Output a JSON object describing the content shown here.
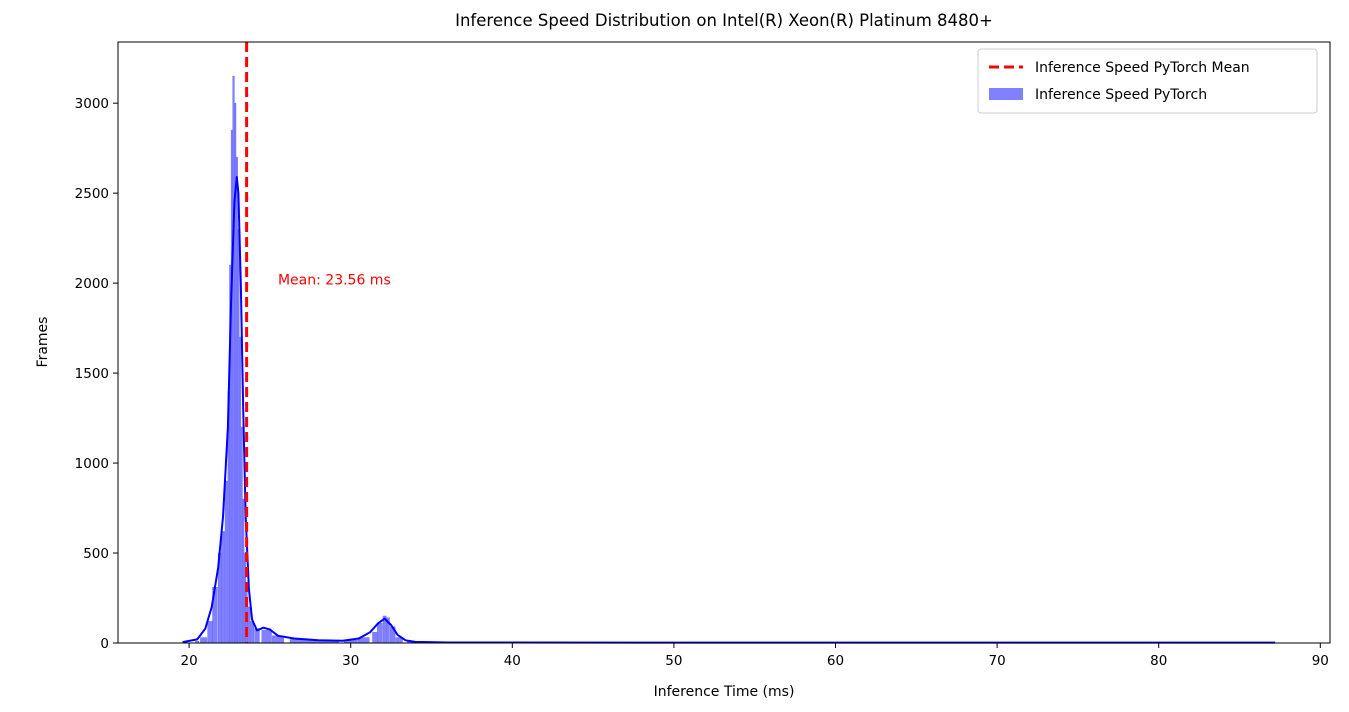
{
  "chart_data": {
    "type": "histogram",
    "title": "Inference Speed Distribution on Intel(R) Xeon(R) Platinum 8480+",
    "xlabel": "Inference Time (ms)",
    "ylabel": "Frames",
    "xlim": [
      15.6,
      90.6
    ],
    "ylim": [
      0,
      3340
    ],
    "xticks": [
      20,
      30,
      40,
      50,
      60,
      70,
      80,
      90
    ],
    "yticks": [
      0,
      500,
      1000,
      1500,
      2000,
      2500,
      3000
    ],
    "grid": false,
    "legend_position": "top-right",
    "colors": {
      "hist": "#6b6bff",
      "kde": "#0000ff",
      "mean": "#ff0000"
    },
    "series": [
      {
        "name": "Inference Speed PyTorch Mean",
        "kind": "mean-line",
        "color": "#ff0000"
      },
      {
        "name": "Inference Speed PyTorch",
        "kind": "histogram+kde",
        "color": "#6b6bff"
      }
    ],
    "mean": {
      "value": 23.56,
      "label": "Mean: 23.56 ms",
      "label_x": 25.5,
      "label_y": 2020
    },
    "histogram": {
      "x": [
        20.5,
        20.9,
        21.3,
        21.6,
        21.9,
        22.1,
        22.3,
        22.45,
        22.55,
        22.65,
        22.75,
        22.85,
        22.95,
        23.05,
        23.15,
        23.25,
        23.35,
        23.45,
        23.55,
        23.7,
        23.9,
        24.2,
        24.8,
        25.5,
        27,
        28.5,
        30,
        30.8,
        31.5,
        31.8,
        32.1,
        32.3,
        32.6,
        33,
        34,
        40,
        60,
        87
      ],
      "values": [
        10,
        30,
        120,
        310,
        500,
        620,
        900,
        1400,
        2100,
        2850,
        3150,
        3000,
        2700,
        2300,
        1700,
        1200,
        800,
        500,
        320,
        200,
        120,
        80,
        70,
        40,
        20,
        15,
        15,
        30,
        60,
        110,
        150,
        140,
        90,
        30,
        8,
        5,
        3,
        2
      ]
    },
    "kde": {
      "x": [
        19.6,
        20.5,
        21,
        21.4,
        21.8,
        22.1,
        22.4,
        22.6,
        22.8,
        22.95,
        23.05,
        23.2,
        23.35,
        23.5,
        23.7,
        23.9,
        24.2,
        24.6,
        25.0,
        25.5,
        26.5,
        28,
        29.5,
        30.5,
        31.2,
        31.7,
        32.1,
        32.5,
        32.9,
        33.4,
        34,
        36,
        50,
        70,
        87.2
      ],
      "values": [
        5,
        20,
        80,
        200,
        420,
        700,
        1200,
        1900,
        2450,
        2590,
        2500,
        2000,
        1300,
        700,
        300,
        130,
        70,
        85,
        75,
        40,
        25,
        15,
        12,
        25,
        60,
        110,
        135,
        100,
        45,
        15,
        6,
        3,
        2,
        2,
        2
      ]
    }
  }
}
